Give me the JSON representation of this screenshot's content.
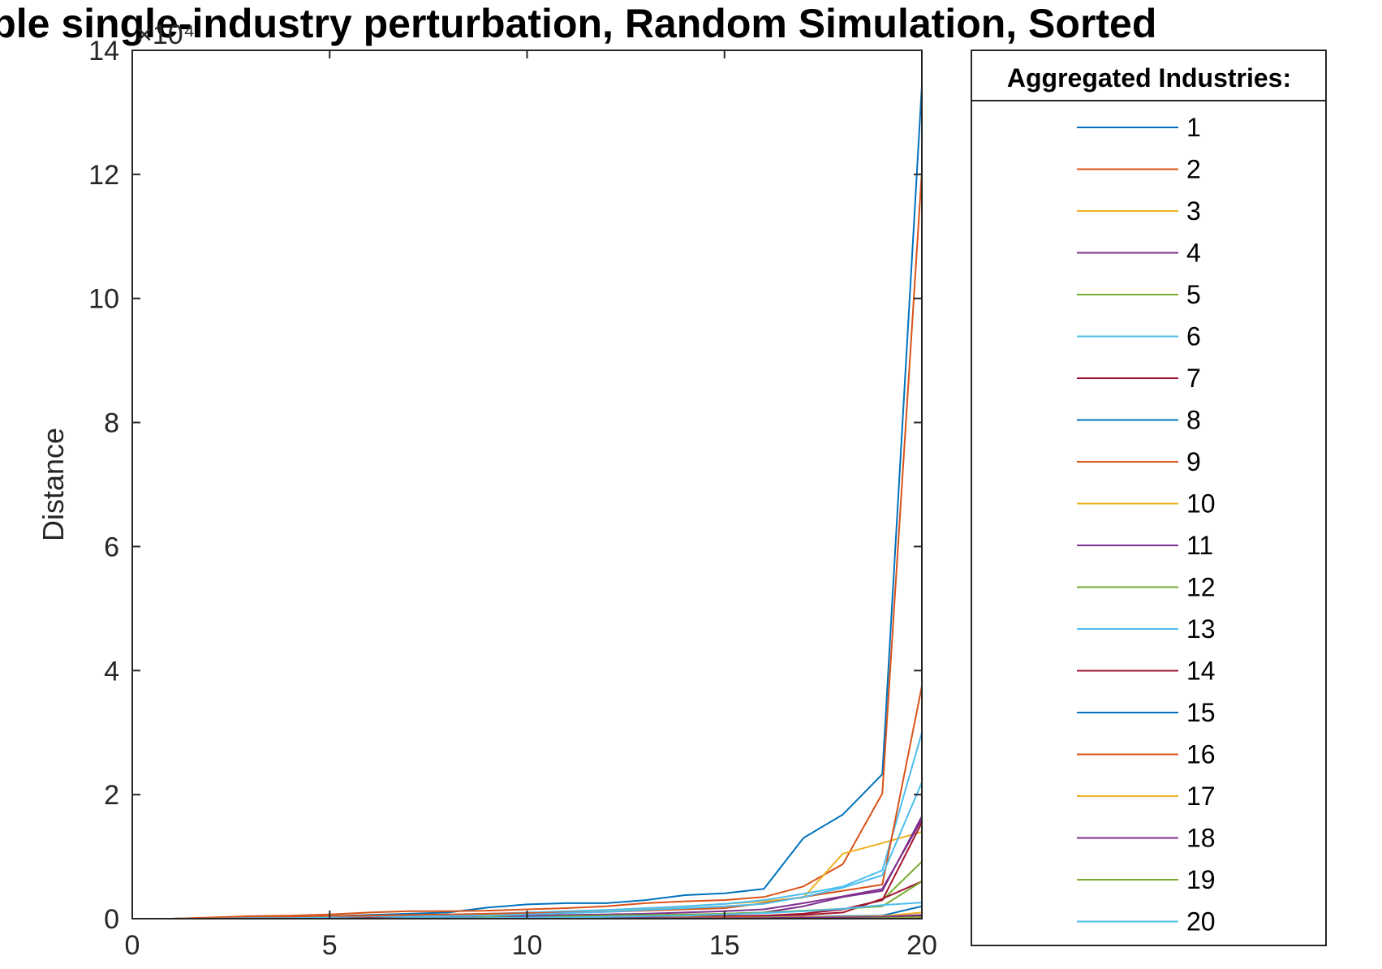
{
  "chart_data": {
    "type": "line",
    "title": "Multiple single-industry perturbation, Random Simulation, Sorted",
    "xlabel": "",
    "ylabel": "Distance",
    "y_exponent_label": "×10⁴",
    "xlim": [
      0,
      20
    ],
    "ylim": [
      0,
      14
    ],
    "xticks": [
      0,
      5,
      10,
      15,
      20
    ],
    "yticks": [
      0,
      2,
      4,
      6,
      8,
      10,
      12,
      14
    ],
    "grid": false,
    "legend": {
      "title": "Aggregated Industries:",
      "placement": "outside-right"
    },
    "x": [
      1,
      2,
      3,
      4,
      5,
      6,
      7,
      8,
      9,
      10,
      11,
      12,
      13,
      14,
      15,
      16,
      17,
      18,
      19,
      20
    ],
    "series": [
      {
        "name": "1",
        "color": "#0072BD",
        "values": [
          0,
          0.01,
          0.02,
          0.03,
          0.04,
          0.06,
          0.08,
          0.1,
          0.18,
          0.23,
          0.25,
          0.25,
          0.3,
          0.38,
          0.41,
          0.48,
          1.3,
          1.68,
          2.33,
          13.43
        ]
      },
      {
        "name": "2",
        "color": "#D95319",
        "values": [
          0,
          0.02,
          0.04,
          0.05,
          0.07,
          0.1,
          0.12,
          0.12,
          0.13,
          0.15,
          0.17,
          0.2,
          0.25,
          0.28,
          0.3,
          0.35,
          0.52,
          0.88,
          2.02,
          12.05
        ]
      },
      {
        "name": "3",
        "color": "#EDB120",
        "values": [
          0,
          0.01,
          0.01,
          0.02,
          0.03,
          0.04,
          0.05,
          0.06,
          0.07,
          0.09,
          0.11,
          0.13,
          0.16,
          0.2,
          0.24,
          0.28,
          0.34,
          1.05,
          1.22,
          1.4
        ]
      },
      {
        "name": "4",
        "color": "#7E2F8E",
        "values": [
          0,
          0,
          0.01,
          0.01,
          0.02,
          0.02,
          0.03,
          0.03,
          0.04,
          0.05,
          0.06,
          0.07,
          0.08,
          0.1,
          0.12,
          0.15,
          0.25,
          0.36,
          0.48,
          1.6
        ]
      },
      {
        "name": "5",
        "color": "#77AC30",
        "values": [
          0,
          0,
          0,
          0.01,
          0.01,
          0.01,
          0.02,
          0.02,
          0.03,
          0.03,
          0.04,
          0.05,
          0.06,
          0.07,
          0.08,
          0.1,
          0.12,
          0.15,
          0.3,
          0.92
        ]
      },
      {
        "name": "6",
        "color": "#4DBEEE",
        "values": [
          0,
          0.01,
          0.01,
          0.02,
          0.03,
          0.04,
          0.05,
          0.06,
          0.08,
          0.1,
          0.12,
          0.14,
          0.17,
          0.2,
          0.24,
          0.3,
          0.4,
          0.52,
          0.78,
          3.0
        ]
      },
      {
        "name": "7",
        "color": "#A2142F",
        "values": [
          0,
          0,
          0,
          0,
          0.01,
          0.01,
          0.01,
          0.01,
          0.02,
          0.02,
          0.02,
          0.03,
          0.03,
          0.04,
          0.04,
          0.05,
          0.06,
          0.1,
          0.32,
          0.6
        ]
      },
      {
        "name": "8",
        "color": "#0072BD",
        "values": [
          0,
          0,
          0,
          0,
          0,
          0,
          0.01,
          0.01,
          0.01,
          0.01,
          0.01,
          0.02,
          0.02,
          0.02,
          0.02,
          0.03,
          0.03,
          0.04,
          0.05,
          0.2
        ]
      },
      {
        "name": "9",
        "color": "#D95319",
        "values": [
          0,
          0.01,
          0.02,
          0.03,
          0.04,
          0.05,
          0.06,
          0.07,
          0.08,
          0.09,
          0.1,
          0.11,
          0.13,
          0.15,
          0.17,
          0.25,
          0.35,
          0.45,
          0.55,
          3.75
        ]
      },
      {
        "name": "10",
        "color": "#EDB120",
        "values": [
          0,
          0,
          0,
          0,
          0,
          0,
          0,
          0,
          0,
          0,
          0,
          0,
          0,
          0,
          0,
          0,
          0,
          0,
          0.01,
          0.05
        ]
      },
      {
        "name": "11",
        "color": "#7E2F8E",
        "values": [
          0,
          0,
          0,
          0,
          0.01,
          0.01,
          0.01,
          0.02,
          0.02,
          0.03,
          0.03,
          0.04,
          0.05,
          0.06,
          0.07,
          0.1,
          0.2,
          0.35,
          0.45,
          1.65
        ]
      },
      {
        "name": "12",
        "color": "#77AC30",
        "values": [
          0,
          0,
          0,
          0,
          0,
          0.01,
          0.01,
          0.01,
          0.02,
          0.02,
          0.03,
          0.04,
          0.05,
          0.06,
          0.08,
          0.1,
          0.13,
          0.16,
          0.2,
          0.6
        ]
      },
      {
        "name": "13",
        "color": "#4DBEEE",
        "values": [
          0,
          0,
          0.01,
          0.01,
          0.02,
          0.02,
          0.03,
          0.04,
          0.05,
          0.07,
          0.09,
          0.11,
          0.14,
          0.17,
          0.2,
          0.24,
          0.35,
          0.5,
          0.7,
          2.2
        ]
      },
      {
        "name": "14",
        "color": "#A2142F",
        "values": [
          0,
          0,
          0,
          0,
          0,
          0.01,
          0.01,
          0.01,
          0.01,
          0.02,
          0.02,
          0.02,
          0.03,
          0.03,
          0.04,
          0.05,
          0.08,
          0.15,
          0.3,
          1.55
        ]
      },
      {
        "name": "15",
        "color": "#0072BD",
        "values": [
          0,
          0,
          0,
          0,
          0,
          0,
          0,
          0,
          0,
          0.01,
          0.01,
          0.01,
          0.01,
          0.01,
          0.02,
          0.02,
          0.02,
          0.03,
          0.03,
          0.05
        ]
      },
      {
        "name": "16",
        "color": "#D95319",
        "values": [
          0,
          0,
          0,
          0,
          0,
          0,
          0,
          0,
          0,
          0,
          0,
          0,
          0,
          0,
          0,
          0,
          0.01,
          0.01,
          0.01,
          0.03
        ]
      },
      {
        "name": "17",
        "color": "#EDB120",
        "values": [
          0,
          0,
          0,
          0,
          0,
          0,
          0,
          0,
          0.01,
          0.01,
          0.01,
          0.01,
          0.01,
          0.02,
          0.02,
          0.02,
          0.03,
          0.03,
          0.04,
          0.1
        ]
      },
      {
        "name": "18",
        "color": "#7E2F8E",
        "values": [
          0,
          0,
          0,
          0,
          0,
          0,
          0,
          0,
          0,
          0,
          0,
          0.01,
          0.01,
          0.01,
          0.01,
          0.01,
          0.02,
          0.02,
          0.03,
          0.06
        ]
      },
      {
        "name": "19",
        "color": "#77AC30",
        "values": [
          0,
          0,
          0,
          0,
          0,
          0,
          0,
          0,
          0,
          0,
          0,
          0,
          0,
          0,
          0,
          0,
          0,
          0,
          0.01,
          0.02
        ]
      },
      {
        "name": "20",
        "color": "#4DBEEE",
        "values": [
          0,
          0,
          0,
          0,
          0,
          0,
          0.01,
          0.01,
          0.01,
          0.02,
          0.02,
          0.03,
          0.04,
          0.05,
          0.07,
          0.09,
          0.12,
          0.16,
          0.22,
          0.26
        ]
      }
    ]
  }
}
